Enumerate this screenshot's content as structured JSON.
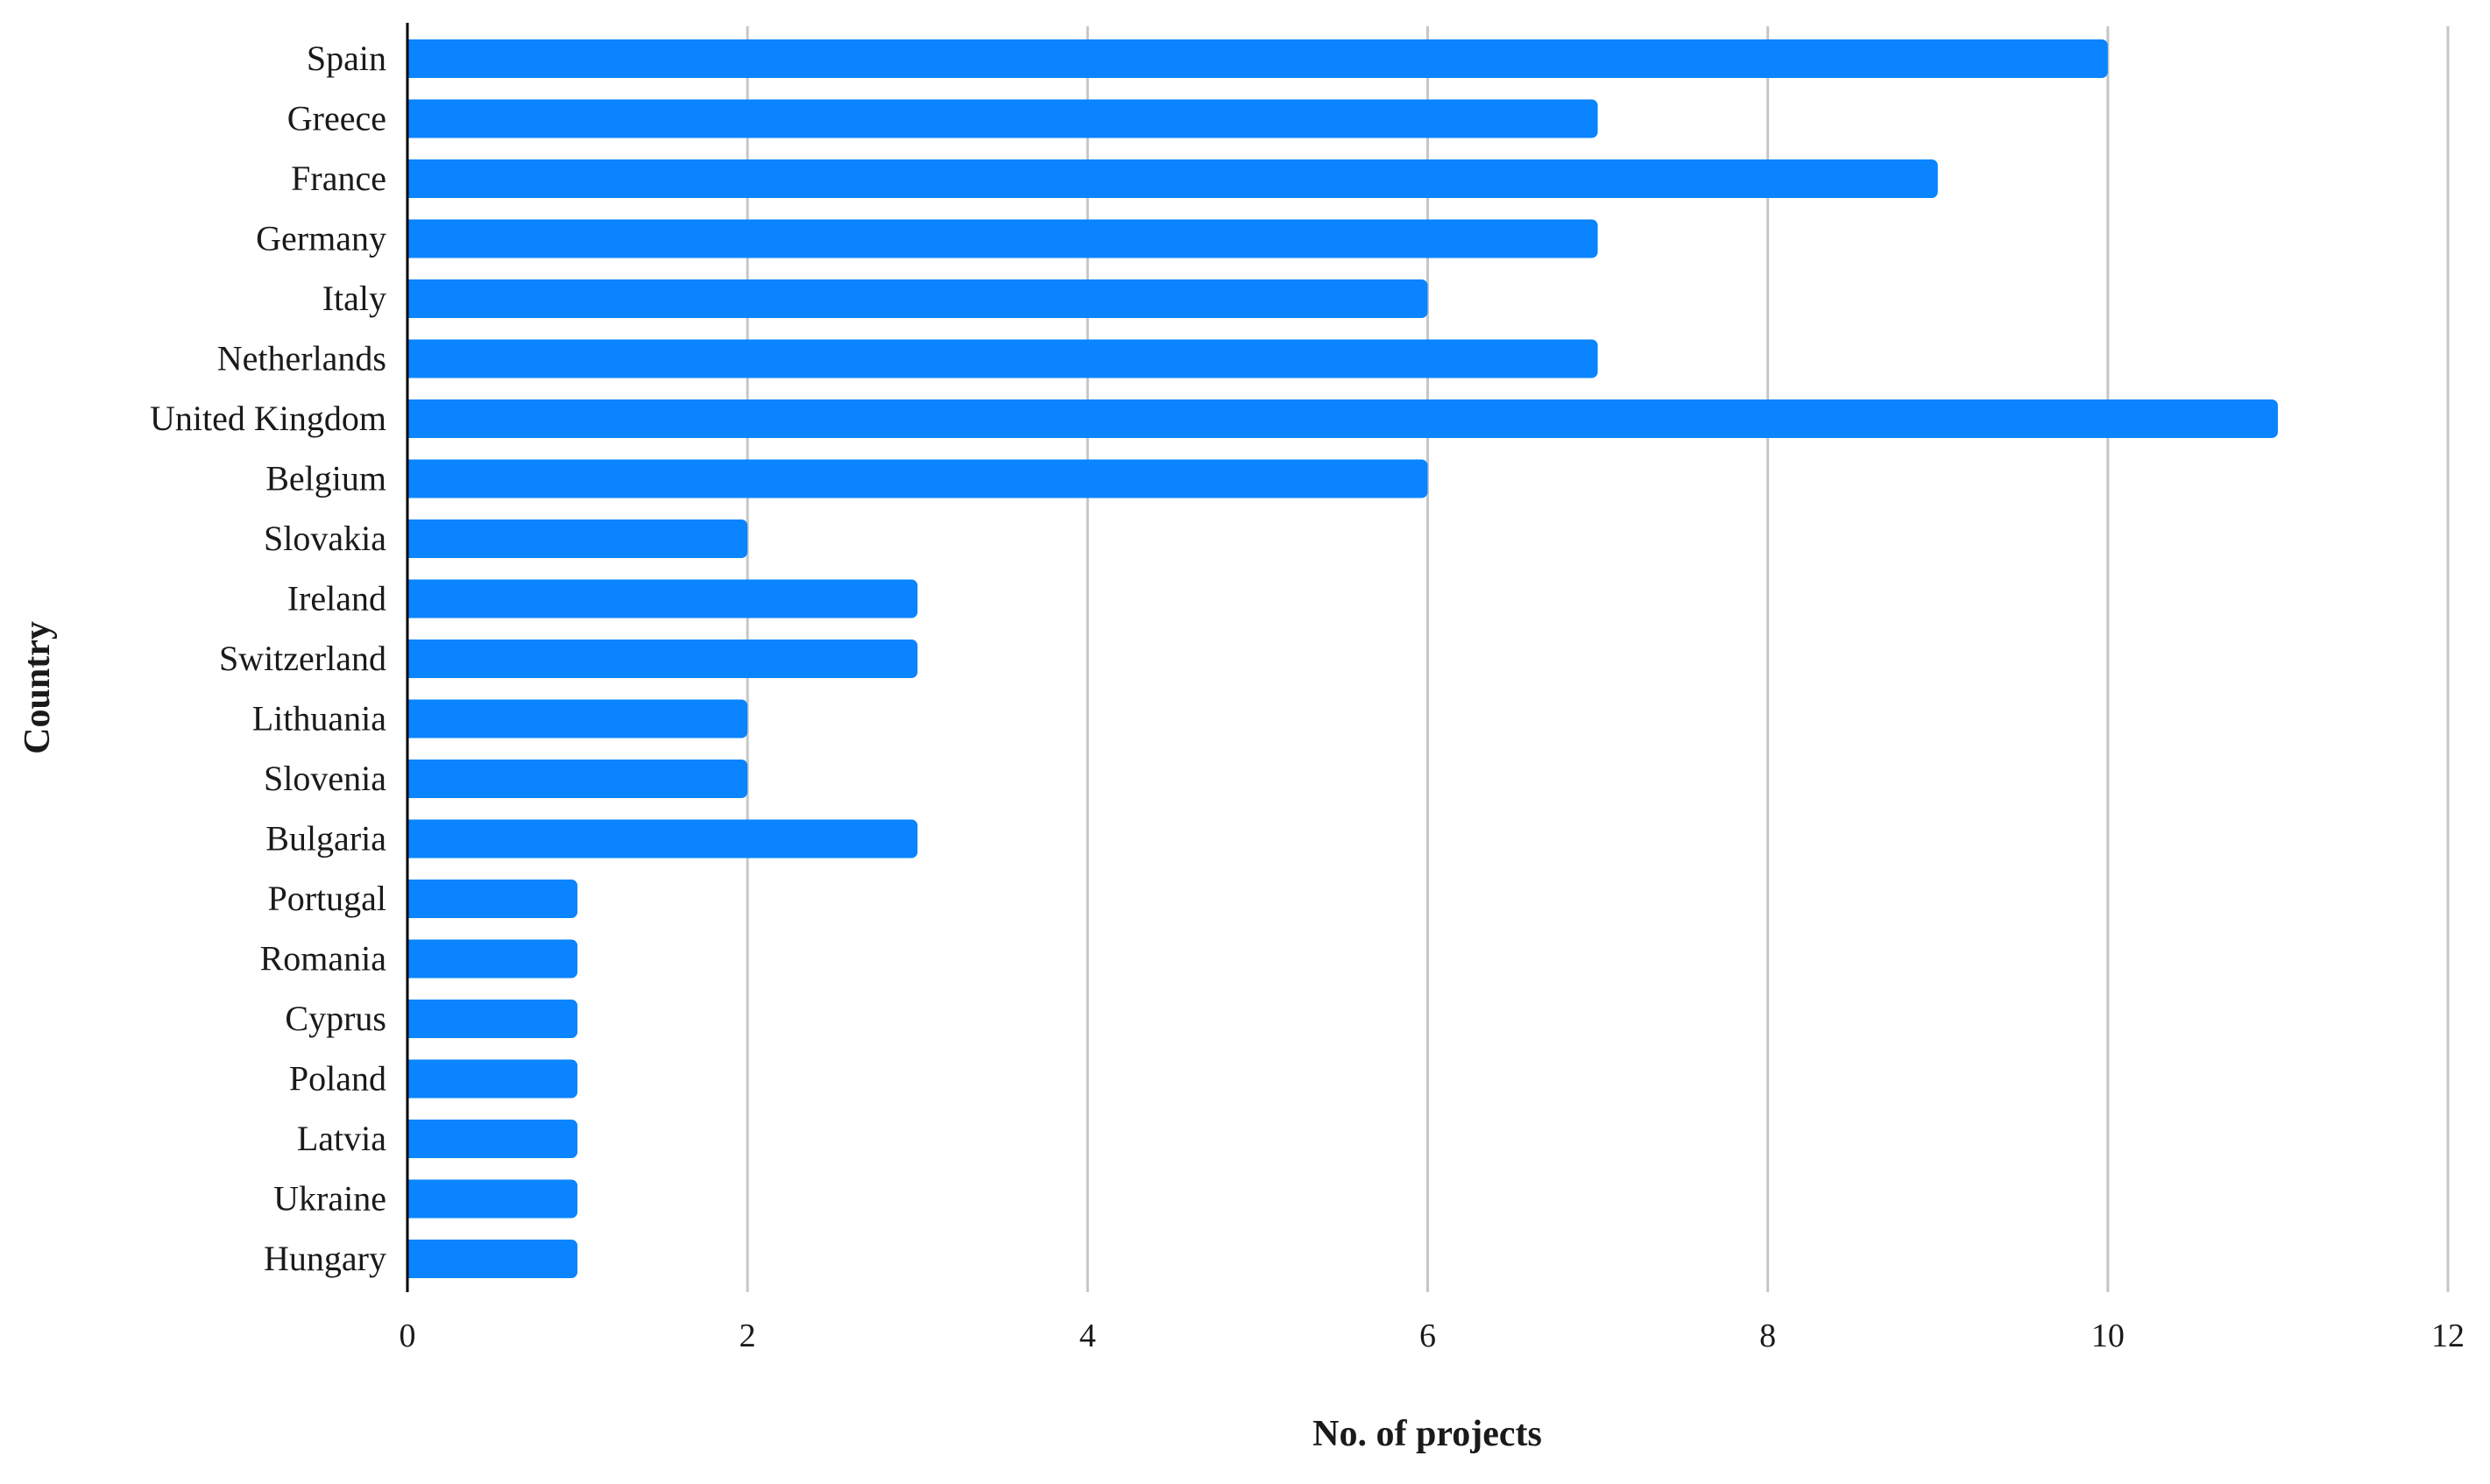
{
  "chart_data": {
    "type": "bar",
    "orientation": "horizontal",
    "title": "",
    "xlabel": "No. of projects",
    "ylabel": "Country",
    "xlim": [
      0,
      12
    ],
    "xticks": [
      0,
      2,
      4,
      6,
      8,
      10,
      12
    ],
    "grid": "vertical",
    "legend": "none",
    "bar_color": "#0a84ff",
    "categories": [
      "Spain",
      "Greece",
      "France",
      "Germany",
      "Italy",
      "Netherlands",
      "United Kingdom",
      "Belgium",
      "Slovakia",
      "Ireland",
      "Switzerland",
      "Lithuania",
      "Slovenia",
      "Bulgaria",
      "Portugal",
      "Romania",
      "Cyprus",
      "Poland",
      "Latvia",
      "Ukraine",
      "Hungary"
    ],
    "values": [
      10,
      7,
      9,
      7,
      6,
      7,
      11,
      6,
      2,
      3,
      3,
      2,
      2,
      3,
      1,
      1,
      1,
      1,
      1,
      1,
      1
    ]
  }
}
